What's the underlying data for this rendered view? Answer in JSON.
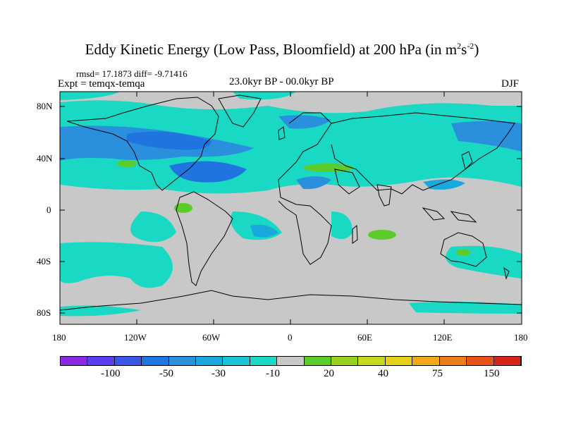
{
  "title_main": "Eddy Kinetic Energy (Low Pass, Bloomfield) at 200 hPa (in m",
  "title_sup1": "2",
  "title_mid": "s",
  "title_sup2": "-2",
  "title_end": ")",
  "stats": "rmsd= 17.1873 diff= -9.71416",
  "expt": "Expt = temqx-temqa",
  "period": "23.0kyr BP - 00.0kyr BP",
  "season": "DJF",
  "lat_labels": [
    "80N",
    "40N",
    "0",
    "40S",
    "80S"
  ],
  "lon_labels": [
    "180",
    "120W",
    "60W",
    "0",
    "60E",
    "120E",
    "180"
  ],
  "colorbar": {
    "colors": [
      "#8a2be2",
      "#5a3ff0",
      "#3a56e6",
      "#1f74e0",
      "#2a90de",
      "#1aa9dc",
      "#19c3d8",
      "#18d8c8",
      "#c8c8c8",
      "#5ccc2a",
      "#98d21e",
      "#c8d81a",
      "#e6d21a",
      "#eeaa1a",
      "#ee7e18",
      "#e85218",
      "#d82418"
    ],
    "labels": [
      "-100",
      "-50",
      "-30",
      "-10",
      "20",
      "40",
      "75",
      "150"
    ]
  },
  "palette": {
    "ocean_gray": "#c8c8c8",
    "cyan": "#19d8c4",
    "blue_light": "#1aa9dc",
    "blue_mid": "#2a90de",
    "blue_dark": "#1f74e0",
    "green": "#5ccc2a"
  }
}
